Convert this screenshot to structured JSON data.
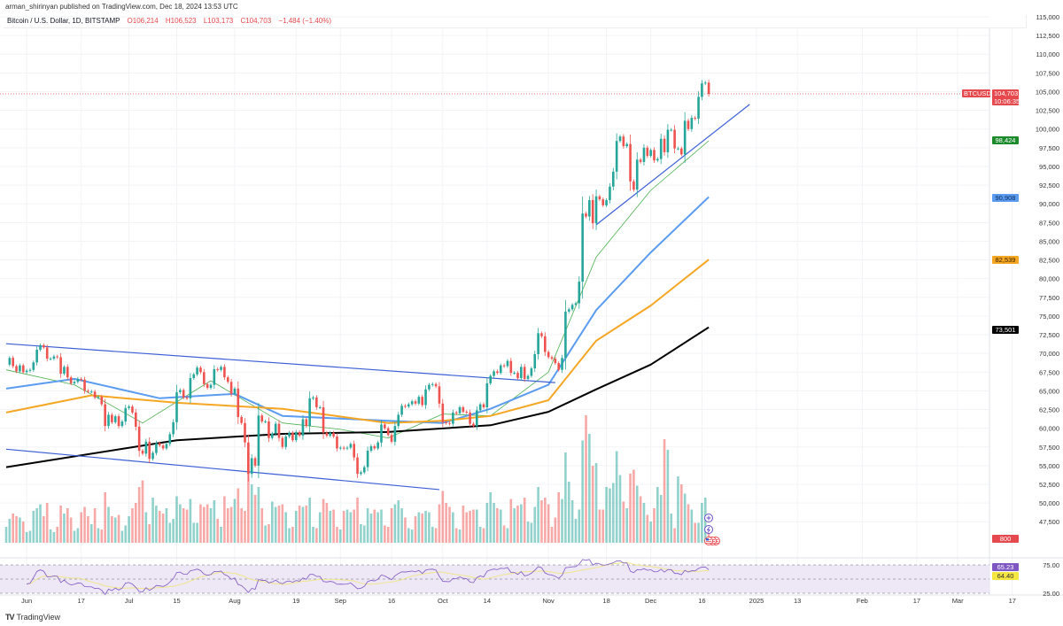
{
  "header": {
    "published": "arman_shirinyan published on TradingView.com, Dec 18, 2024 13:53 UTC",
    "symbol_desc": "Bitcoin / U.S. Dollar, 1D, BITSTAMP",
    "open": "O106,214",
    "high": "H106,523",
    "low": "L103,173",
    "close": "C104,703",
    "change": "−1,484 (−1.40%)"
  },
  "footer": {
    "brand": "TradingView",
    "logo_mark": "TV"
  },
  "price_axis": {
    "labels": [
      "115,000",
      "112,500",
      "110,000",
      "107,500",
      "105,000",
      "102,500",
      "100,000",
      "97,500",
      "95,000",
      "92,500",
      "90,000",
      "87,500",
      "85,000",
      "82,500",
      "80,000",
      "77,500",
      "75,000",
      "72,500",
      "70,000",
      "67,500",
      "65,000",
      "62,500",
      "60,000",
      "57,500",
      "55,000",
      "52,500",
      "50,000",
      "47,500"
    ],
    "rsi_labels": [
      "75.00",
      "25.00"
    ]
  },
  "time_axis": {
    "labels": [
      [
        "Jun",
        "2024-06-01"
      ],
      [
        "17",
        "2024-06-17"
      ],
      [
        "Jul",
        "2024-07-01"
      ],
      [
        "15",
        "2024-07-15"
      ],
      [
        "Aug",
        "2024-08-01"
      ],
      [
        "19",
        "2024-08-19"
      ],
      [
        "Sep",
        "2024-09-01"
      ],
      [
        "16",
        "2024-09-16"
      ],
      [
        "Oct",
        "2024-10-01"
      ],
      [
        "14",
        "2024-10-14"
      ],
      [
        "Nov",
        "2024-11-01"
      ],
      [
        "18",
        "2024-11-18"
      ],
      [
        "Dec",
        "2024-12-01"
      ],
      [
        "16",
        "2024-12-16"
      ],
      [
        "2025",
        "2025-01-01"
      ],
      [
        "13",
        "2025-01-13"
      ],
      [
        "Feb",
        "2025-02-01"
      ],
      [
        "17",
        "2025-02-17"
      ],
      [
        "Mar",
        "2025-03-01"
      ],
      [
        "17",
        "2025-03-17"
      ]
    ]
  },
  "badges": {
    "symbol": "BTCUSD",
    "last_price": "104,703",
    "countdown": "10:06:35",
    "ma20": "98,424",
    "ma50": "90,908",
    "ma100": "82,539",
    "ma200": "73,501",
    "volume": "800",
    "rsi": "65.23",
    "rsi_ma": "64.40"
  },
  "colors": {
    "up": "#26a69a",
    "down": "#ef5350",
    "ma20": "#4caf50",
    "ma50": "#5b9cf0",
    "ma100": "#f5a623",
    "ma200": "#000000",
    "trendline": "#3d5fd6",
    "rsi": "#7e57c2",
    "rsi_ma": "#f0e68c",
    "rsi_band": "#ede7f6"
  },
  "icons": [
    "plus-circle-icon",
    "lightning-icon",
    "us-flag-icon"
  ],
  "chart_data": {
    "type": "candlestick",
    "interval": "1D",
    "first_date": "2024-05-26",
    "ylim": [
      46000,
      116000
    ],
    "grid": true,
    "last_price": 104703,
    "closes": [
      68500,
      69400,
      68300,
      67600,
      68400,
      67500,
      67700,
      67800,
      68800,
      70500,
      71100,
      70800,
      69300,
      69300,
      69600,
      69500,
      67300,
      68200,
      66800,
      66000,
      66200,
      66600,
      66500,
      65000,
      64900,
      64900,
      64100,
      64200,
      63200,
      60300,
      61800,
      60800,
      61600,
      60300,
      60900,
      62700,
      62900,
      62100,
      60200,
      57000,
      56600,
      58200,
      55900,
      56700,
      58000,
      57700,
      57300,
      57900,
      59200,
      60800,
      64800,
      65100,
      64100,
      64000,
      66700,
      67200,
      68100,
      67500,
      65900,
      65400,
      65800,
      67900,
      67800,
      68200,
      66800,
      66200,
      64600,
      65300,
      61500,
      60700,
      58100,
      53900,
      56000,
      55000,
      61700,
      60900,
      60900,
      58700,
      59300,
      60600,
      58700,
      57500,
      58900,
      59400,
      58400,
      59500,
      59000,
      61200,
      60300,
      64000,
      64100,
      62800,
      62800,
      59400,
      59000,
      59400,
      58900,
      57300,
      57400,
      57300,
      57400,
      57900,
      56100,
      53900,
      54100,
      54800,
      57000,
      57600,
      57300,
      58100,
      60500,
      60000,
      59100,
      58200,
      60300,
      61800,
      63000,
      62900,
      63200,
      63600,
      63300,
      64200,
      63100,
      65200,
      65800,
      65900,
      65600,
      63300,
      60800,
      60700,
      60600,
      62100,
      62000,
      62800,
      62200,
      62100,
      60600,
      60300,
      62400,
      63200,
      62800,
      66000,
      67000,
      67600,
      67400,
      68400,
      68300,
      69000,
      67400,
      67400,
      66700,
      68200,
      66600,
      67000,
      68000,
      69900,
      72700,
      72300,
      70200,
      69500,
      69300,
      68700,
      67800,
      69400,
      75600,
      75900,
      76500,
      76700,
      79600,
      88700,
      88300,
      90500,
      87400,
      91000,
      90600,
      89800,
      90500,
      92300,
      94300,
      98400,
      99000,
      97700,
      98000,
      93000,
      91900,
      95900,
      95600,
      97500,
      96400,
      97200,
      95800,
      96000,
      98700,
      96900,
      99900,
      99900,
      97400,
      97400,
      96600,
      101100,
      100000,
      101500,
      101400,
      104300,
      106100,
      106200,
      104703
    ],
    "volumes": [
      1200,
      1800,
      2200,
      2000,
      1900,
      1600,
      800,
      900,
      2400,
      2600,
      2900,
      2000,
      3000,
      1000,
      800,
      1200,
      2800,
      2200,
      2600,
      1900,
      900,
      1100,
      2300,
      2700,
      2000,
      1400,
      2600,
      1100,
      1000,
      3800,
      2700,
      2000,
      1900,
      2100,
      900,
      1300,
      2000,
      2600,
      3000,
      4200,
      4700,
      2300,
      1400,
      3400,
      2800,
      2400,
      2200,
      2600,
      1500,
      1800,
      3500,
      2900,
      2600,
      2500,
      3300,
      1500,
      1500,
      2900,
      2700,
      2900,
      2600,
      3200,
      1800,
      1200,
      3500,
      2600,
      2700,
      3300,
      4100,
      2600,
      2400,
      6800,
      4400,
      3600,
      4200,
      2600,
      1300,
      1400,
      3100,
      2700,
      2800,
      2900,
      2300,
      1100,
      1200,
      2400,
      2800,
      2700,
      2800,
      3400,
      1200,
      1100,
      2300,
      3300,
      3000,
      2400,
      2500,
      1200,
      1000,
      2400,
      2500,
      2300,
      2500,
      3400,
      1400,
      1300,
      2600,
      2200,
      2500,
      2300,
      2500,
      1300,
      1200,
      2600,
      2900,
      3200,
      2600,
      1900,
      1100,
      1000,
      2000,
      2300,
      2200,
      2400,
      2300,
      1200,
      1100,
      2900,
      3900,
      3000,
      2700,
      2300,
      1100,
      1000,
      2800,
      2300,
      2400,
      2500,
      2500,
      1200,
      1100,
      3000,
      3800,
      3000,
      2600,
      2500,
      1300,
      1100,
      3300,
      2600,
      2800,
      2900,
      3400,
      1600,
      1500,
      2700,
      4200,
      3200,
      3400,
      2900,
      1200,
      1900,
      3800,
      3300,
      6800,
      4600,
      3200,
      1800,
      2500,
      7700,
      9600,
      8200,
      5800,
      6000,
      2500,
      2500,
      4200,
      4100,
      4500,
      6900,
      5100,
      3100,
      2600,
      5200,
      5500,
      4300,
      3500,
      3000,
      2100,
      1600,
      2600,
      4200,
      3600,
      7800,
      7000,
      2200,
      1100,
      5000,
      4400,
      3700,
      2900,
      2500,
      1500,
      1500,
      3000,
      3400,
      800
    ],
    "moving_averages": [
      {
        "key": "ma20",
        "points": [
          [
            "2024-05-26",
            67800
          ],
          [
            "2024-06-15",
            65800
          ],
          [
            "2024-07-05",
            60700
          ],
          [
            "2024-07-25",
            66350
          ],
          [
            "2024-08-15",
            60700
          ],
          [
            "2024-09-01",
            59850
          ],
          [
            "2024-09-15",
            58700
          ],
          [
            "2024-10-01",
            61900
          ],
          [
            "2024-10-15",
            61650
          ],
          [
            "2024-11-01",
            67500
          ],
          [
            "2024-11-15",
            82900
          ],
          [
            "2024-12-01",
            91800
          ],
          [
            "2024-12-18",
            98424
          ]
        ]
      },
      {
        "key": "ma50",
        "points": [
          [
            "2024-05-26",
            65300
          ],
          [
            "2024-06-15",
            66600
          ],
          [
            "2024-07-10",
            64000
          ],
          [
            "2024-08-01",
            64600
          ],
          [
            "2024-08-15",
            61650
          ],
          [
            "2024-09-15",
            61000
          ],
          [
            "2024-10-01",
            60700
          ],
          [
            "2024-10-15",
            62600
          ],
          [
            "2024-11-01",
            65800
          ],
          [
            "2024-11-15",
            75800
          ],
          [
            "2024-12-01",
            83500
          ],
          [
            "2024-12-18",
            90908
          ]
        ]
      },
      {
        "key": "ma100",
        "points": [
          [
            "2024-05-26",
            62100
          ],
          [
            "2024-06-20",
            64400
          ],
          [
            "2024-07-15",
            63400
          ],
          [
            "2024-08-15",
            62600
          ],
          [
            "2024-09-15",
            60700
          ],
          [
            "2024-10-01",
            61000
          ],
          [
            "2024-10-15",
            61650
          ],
          [
            "2024-11-01",
            63750
          ],
          [
            "2024-11-15",
            71700
          ],
          [
            "2024-12-01",
            76400
          ],
          [
            "2024-12-18",
            82539
          ]
        ]
      },
      {
        "key": "ma200",
        "points": [
          [
            "2024-05-26",
            54800
          ],
          [
            "2024-07-15",
            58400
          ],
          [
            "2024-08-15",
            59250
          ],
          [
            "2024-09-15",
            59500
          ],
          [
            "2024-10-15",
            60400
          ],
          [
            "2024-11-01",
            62200
          ],
          [
            "2024-11-15",
            65200
          ],
          [
            "2024-12-01",
            68500
          ],
          [
            "2024-12-18",
            73501
          ]
        ]
      }
    ],
    "trendlines": [
      [
        [
          "2024-05-26",
          71300
        ],
        [
          "2024-11-03",
          66100
        ]
      ],
      [
        [
          "2024-05-26",
          57200
        ],
        [
          "2024-09-30",
          51800
        ]
      ],
      [
        [
          "2024-11-15",
          87200
        ],
        [
          "2024-12-30",
          103300
        ]
      ]
    ],
    "rsi": {
      "value": 65.23,
      "ma": 64.4,
      "levels": [
        75,
        50,
        25
      ]
    }
  }
}
